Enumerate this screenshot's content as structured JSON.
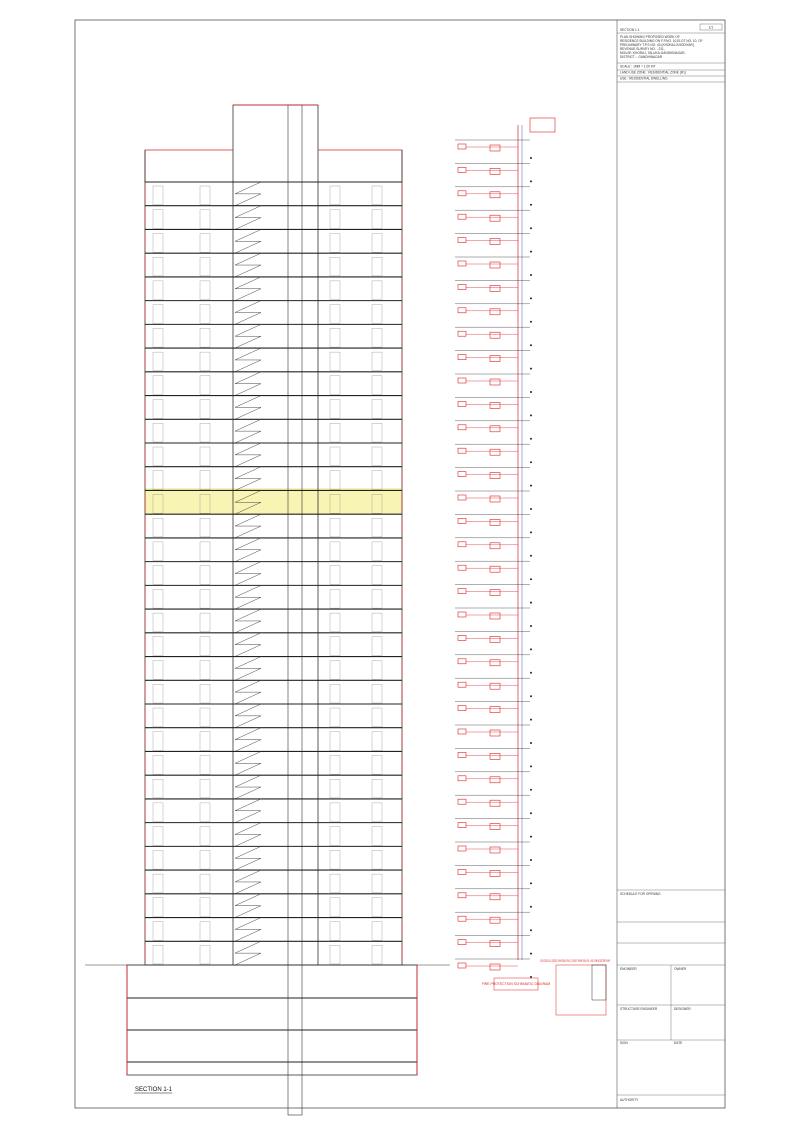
{
  "drawing": {
    "section_label": "SECTION 1-1",
    "fire_title": "FIRE PROTECTION SCHEMATIC DIAGRAM",
    "pump_note": "2 EXISTING & 1 DIESEL PUMP 2850 LPM, 1 JOCKEY PUMP 180 LPM, 1 900 LPM BOOSTER PUMP"
  },
  "title_block": {
    "sheet_no": "1/1",
    "sheet_title": "SECTION 1-1",
    "description": [
      "PLAN SHOWING PROPOSED WORK OF",
      "RESIDENCE BUILDING ON F.P.NO. 10,ELOT NO. 10, OF",
      "PRELIMINARY T.P.S NO. 43 (KHORAJ-KHODIYAR),",
      "REVENUE SURVEY NO. - 311,",
      "MOUJE: KHORAJ, TALUKA-GANDHINAGAR,",
      "DISTRICT :- GANDHINAGAR"
    ],
    "scale": "SCALE : 1MM = 1.00 MT",
    "zone": "LAND USE ZONE : RESIDENTIAL ZONE (R1)",
    "use": "USE : RESIDENTIAL DWELLING",
    "schedule": "SCHEDULE FOR OPENING",
    "signatures": [
      "ENGINEER",
      "OWNER",
      "STRUCTURE ENGINEER",
      "DESIGNER",
      "SIGN",
      "DATE",
      "AUTHORITY"
    ]
  }
}
